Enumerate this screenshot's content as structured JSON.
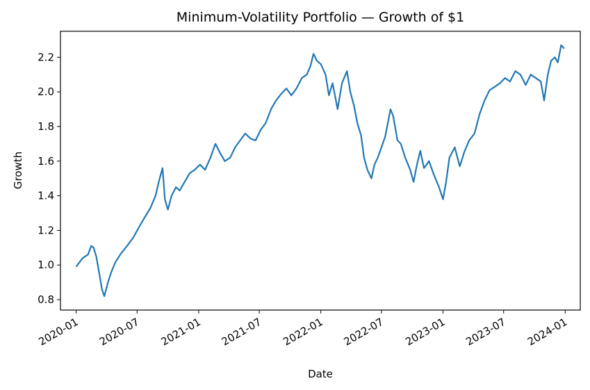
{
  "chart_data": {
    "type": "line",
    "title": "Minimum-Volatility Portfolio — Growth of $1",
    "xlabel": "Date",
    "ylabel": "Growth",
    "xlim": [
      "2019-11-15",
      "2024-02-15"
    ],
    "ylim": [
      0.74,
      2.35
    ],
    "grid": false,
    "x_ticks": [
      "2020-01",
      "2020-07",
      "2021-01",
      "2021-07",
      "2022-01",
      "2022-07",
      "2023-01",
      "2023-07",
      "2024-01"
    ],
    "y_ticks": [
      "0.8",
      "1.0",
      "1.2",
      "1.4",
      "1.6",
      "1.8",
      "2.0",
      "2.2"
    ],
    "series": [
      {
        "color": "#1f77b4",
        "x": [
          "2020-01-01",
          "2020-01-20",
          "2020-02-05",
          "2020-02-15",
          "2020-02-22",
          "2020-03-01",
          "2020-03-10",
          "2020-03-18",
          "2020-03-25",
          "2020-04-05",
          "2020-04-15",
          "2020-04-28",
          "2020-05-15",
          "2020-06-01",
          "2020-06-20",
          "2020-07-10",
          "2020-07-25",
          "2020-08-10",
          "2020-08-25",
          "2020-09-05",
          "2020-09-15",
          "2020-09-22",
          "2020-10-01",
          "2020-10-12",
          "2020-10-25",
          "2020-11-05",
          "2020-11-20",
          "2020-12-05",
          "2020-12-20",
          "2021-01-05",
          "2021-01-20",
          "2021-02-05",
          "2021-02-20",
          "2021-03-05",
          "2021-03-20",
          "2021-04-05",
          "2021-04-20",
          "2021-05-05",
          "2021-05-20",
          "2021-06-05",
          "2021-06-20",
          "2021-07-05",
          "2021-07-20",
          "2021-08-05",
          "2021-08-20",
          "2021-09-05",
          "2021-09-20",
          "2021-10-05",
          "2021-10-20",
          "2021-11-05",
          "2021-11-20",
          "2021-12-01",
          "2021-12-10",
          "2021-12-20",
          "2022-01-01",
          "2022-01-15",
          "2022-01-25",
          "2022-02-05",
          "2022-02-20",
          "2022-03-05",
          "2022-03-20",
          "2022-03-30",
          "2022-04-10",
          "2022-04-20",
          "2022-05-01",
          "2022-05-10",
          "2022-05-20",
          "2022-06-01",
          "2022-06-10",
          "2022-06-20",
          "2022-07-01",
          "2022-07-12",
          "2022-07-20",
          "2022-07-28",
          "2022-08-05",
          "2022-08-18",
          "2022-08-28",
          "2022-09-10",
          "2022-09-25",
          "2022-10-05",
          "2022-10-15",
          "2022-10-25",
          "2022-11-05",
          "2022-11-20",
          "2022-12-05",
          "2022-12-20",
          "2023-01-01",
          "2023-01-10",
          "2023-01-20",
          "2023-02-05",
          "2023-02-20",
          "2023-03-05",
          "2023-03-20",
          "2023-04-05",
          "2023-04-20",
          "2023-05-05",
          "2023-05-20",
          "2023-06-05",
          "2023-06-20",
          "2023-07-05",
          "2023-07-20",
          "2023-08-05",
          "2023-08-20",
          "2023-09-05",
          "2023-09-20",
          "2023-10-05",
          "2023-10-20",
          "2023-10-30",
          "2023-11-10",
          "2023-11-20",
          "2023-12-01",
          "2023-12-10",
          "2023-12-20",
          "2023-12-29"
        ],
        "y": [
          0.99,
          1.04,
          1.06,
          1.11,
          1.1,
          1.05,
          0.95,
          0.86,
          0.82,
          0.9,
          0.96,
          1.02,
          1.07,
          1.11,
          1.16,
          1.23,
          1.28,
          1.33,
          1.4,
          1.49,
          1.56,
          1.38,
          1.32,
          1.4,
          1.45,
          1.43,
          1.48,
          1.53,
          1.55,
          1.58,
          1.55,
          1.62,
          1.7,
          1.65,
          1.6,
          1.62,
          1.68,
          1.72,
          1.76,
          1.73,
          1.72,
          1.78,
          1.82,
          1.9,
          1.95,
          1.99,
          2.02,
          1.98,
          2.02,
          2.08,
          2.1,
          2.15,
          2.22,
          2.18,
          2.16,
          2.1,
          1.98,
          2.05,
          1.9,
          2.05,
          2.12,
          2.0,
          1.92,
          1.82,
          1.75,
          1.62,
          1.55,
          1.5,
          1.58,
          1.62,
          1.68,
          1.74,
          1.82,
          1.9,
          1.86,
          1.72,
          1.7,
          1.62,
          1.55,
          1.48,
          1.58,
          1.66,
          1.56,
          1.6,
          1.52,
          1.45,
          1.38,
          1.48,
          1.62,
          1.68,
          1.57,
          1.65,
          1.72,
          1.76,
          1.87,
          1.95,
          2.01,
          2.03,
          2.05,
          2.08,
          2.06,
          2.12,
          2.1,
          2.04,
          2.1,
          2.08,
          2.06,
          1.95,
          2.1,
          2.18,
          2.2,
          2.17,
          2.27,
          2.25
        ]
      }
    ]
  }
}
